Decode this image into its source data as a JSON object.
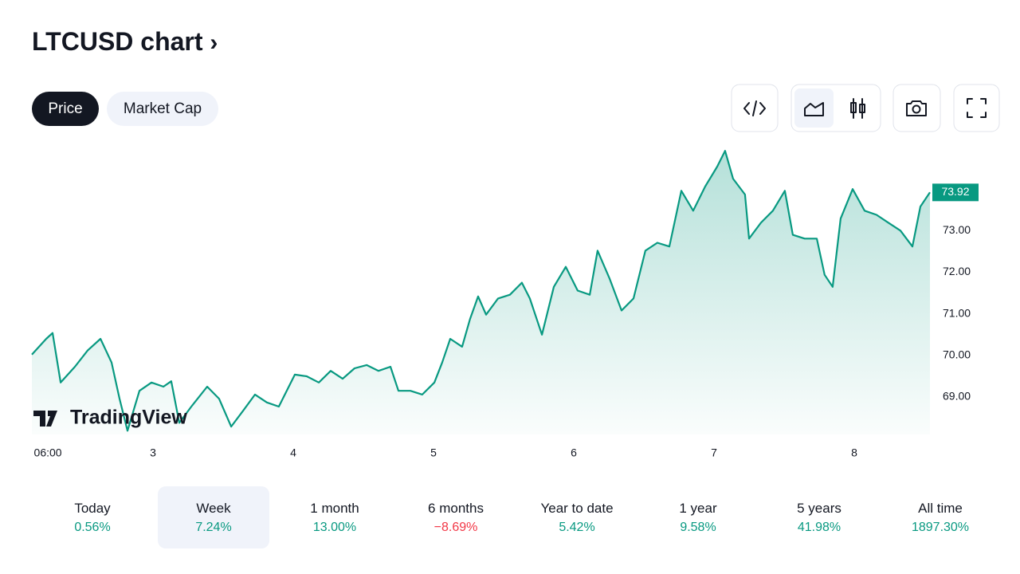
{
  "header": {
    "title": "LTCUSD chart"
  },
  "tabs": {
    "items": [
      "Price",
      "Market Cap"
    ],
    "active": 0
  },
  "watermark": "TradingView",
  "chart_data": {
    "type": "line",
    "color": "#089981",
    "x": [
      2.136,
      2.238,
      2.284,
      2.341,
      2.443,
      2.534,
      2.625,
      2.704,
      2.761,
      2.818,
      2.903,
      2.989,
      3.074,
      3.13,
      3.187,
      3.273,
      3.386,
      3.471,
      3.557,
      3.642,
      3.727,
      3.812,
      3.897,
      4.011,
      4.096,
      4.182,
      4.267,
      4.352,
      4.437,
      4.523,
      4.608,
      4.693,
      4.75,
      4.835,
      4.92,
      5.006,
      5.062,
      5.119,
      5.204,
      5.261,
      5.318,
      5.375,
      5.46,
      5.545,
      5.63,
      5.687,
      5.773,
      5.858,
      5.943,
      6.028,
      6.114,
      6.17,
      6.255,
      6.341,
      6.426,
      6.511,
      6.596,
      6.682,
      6.767,
      6.852,
      6.937,
      7.023,
      7.079,
      7.136,
      7.221,
      7.25,
      7.335,
      7.42,
      7.505,
      7.562,
      7.647,
      7.733,
      7.789,
      7.846,
      7.903,
      7.989,
      8.074,
      8.159,
      8.244,
      8.33,
      8.415,
      8.472,
      8.54
    ],
    "series": [
      {
        "name": "LTCUSD",
        "color": "#089981",
        "values": [
          70.02,
          70.4,
          70.54,
          69.35,
          69.73,
          70.12,
          70.4,
          69.83,
          68.96,
          68.19,
          69.15,
          69.35,
          69.25,
          69.38,
          68.38,
          68.77,
          69.25,
          68.96,
          68.29,
          68.67,
          69.06,
          68.87,
          68.77,
          69.54,
          69.5,
          69.35,
          69.63,
          69.44,
          69.69,
          69.77,
          69.63,
          69.73,
          69.15,
          69.15,
          69.06,
          69.35,
          69.83,
          70.4,
          70.21,
          70.88,
          71.42,
          70.98,
          71.37,
          71.46,
          71.75,
          71.37,
          70.5,
          71.65,
          72.13,
          71.56,
          71.46,
          72.52,
          71.85,
          71.08,
          71.37,
          72.52,
          72.71,
          72.62,
          73.96,
          73.48,
          74.06,
          74.54,
          74.92,
          74.25,
          73.87,
          72.81,
          73.19,
          73.48,
          73.96,
          72.9,
          72.81,
          72.81,
          71.94,
          71.65,
          73.29,
          74.0,
          73.48,
          73.38,
          73.19,
          73.0,
          72.62,
          73.58,
          73.92
        ]
      }
    ],
    "last_label": "73.92",
    "xlim": [
      2.136,
      8.54
    ],
    "xticks": [
      {
        "value": 2.25,
        "label": "06:00"
      },
      3,
      4,
      5,
      6,
      7,
      8
    ],
    "ylim": [
      68.1,
      75.0
    ],
    "yticks": [
      {
        "value": 69,
        "label": "69.00"
      },
      {
        "value": 70,
        "label": "70.00"
      },
      {
        "value": 71,
        "label": "71.00"
      },
      {
        "value": 72,
        "label": "72.00"
      },
      {
        "value": 73,
        "label": "73.00"
      }
    ]
  },
  "periods": {
    "active": 1,
    "items": [
      {
        "label": "Today",
        "change": "0.56%",
        "color": "#089981"
      },
      {
        "label": "Week",
        "change": "7.24%",
        "color": "#089981"
      },
      {
        "label": "1 month",
        "change": "13.00%",
        "color": "#089981"
      },
      {
        "label": "6 months",
        "change": "−8.69%",
        "color": "#f23645"
      },
      {
        "label": "Year to date",
        "change": "5.42%",
        "color": "#089981"
      },
      {
        "label": "1 year",
        "change": "9.58%",
        "color": "#089981"
      },
      {
        "label": "5 years",
        "change": "41.98%",
        "color": "#089981"
      },
      {
        "label": "All time",
        "change": "1897.30%",
        "color": "#089981"
      }
    ]
  }
}
